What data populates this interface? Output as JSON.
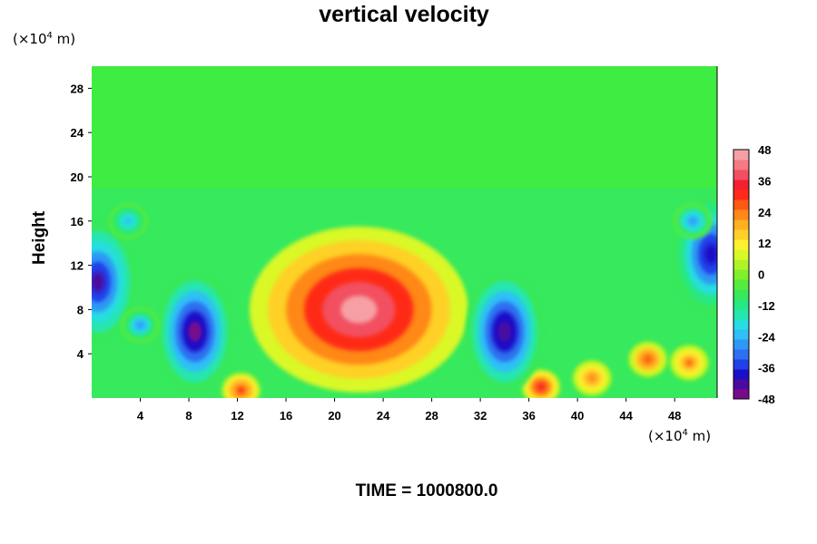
{
  "title": "vertical velocity",
  "footer": "TIME = 1000800.0",
  "chart_data": {
    "type": "heatmap",
    "title": "vertical velocity",
    "xlabel": "",
    "ylabel": "Height",
    "x_unit": "(×10⁴ m)",
    "y_unit": "(×10⁴ m)",
    "unit_base": "(×10",
    "unit_exp": "4",
    "unit_tail": " m)",
    "xlim": [
      0,
      51.5
    ],
    "ylim": [
      0,
      30
    ],
    "x_ticks": [
      4,
      8,
      12,
      16,
      20,
      24,
      28,
      32,
      36,
      40,
      44,
      48
    ],
    "y_ticks": [
      4,
      8,
      12,
      16,
      20,
      24,
      28
    ],
    "colorbar": {
      "min": -48,
      "max": 48,
      "step": 4,
      "ticks": [
        48,
        36,
        24,
        12,
        0,
        -12,
        -24,
        -36,
        -48
      ],
      "colors": [
        "#7a0a8c",
        "#4a0aa0",
        "#1a10c8",
        "#2040e8",
        "#2e6ef0",
        "#2f98f5",
        "#2ec0f6",
        "#27dee0",
        "#26e6b0",
        "#28e884",
        "#38e85a",
        "#56ec3c",
        "#80f02c",
        "#b0f428",
        "#daf828",
        "#fff030",
        "#ffd028",
        "#ffb020",
        "#ff8818",
        "#ff5a14",
        "#ff2a18",
        "#f42030",
        "#f25060",
        "#f47a84",
        "#f6a0a6"
      ]
    },
    "features": [
      {
        "kind": "updraft",
        "x": 22,
        "y": 8,
        "w_max": 48
      },
      {
        "kind": "updraft",
        "x": 12.3,
        "y": 0.7,
        "w_max": 30
      },
      {
        "kind": "updraft",
        "x": 41.2,
        "y": 1.8,
        "w_max": 22
      },
      {
        "kind": "updraft",
        "x": 45.8,
        "y": 3.5,
        "w_max": 28
      },
      {
        "kind": "updraft",
        "x": 49.2,
        "y": 3.2,
        "w_max": 26
      },
      {
        "kind": "updraft",
        "x": 37,
        "y": 1,
        "w_max": 34
      },
      {
        "kind": "downdraft",
        "x": 8.5,
        "y": 6,
        "w_max": -48
      },
      {
        "kind": "downdraft",
        "x": 34,
        "y": 6,
        "w_max": -46
      },
      {
        "kind": "downdraft",
        "x": 0.5,
        "y": 10.5,
        "w_max": -44
      },
      {
        "kind": "downdraft",
        "x": 51,
        "y": 13,
        "w_max": -42
      },
      {
        "kind": "downdraft",
        "x": 4,
        "y": 6.6,
        "w_max": -28
      },
      {
        "kind": "downdraft",
        "x": 3,
        "y": 16,
        "w_max": -24
      },
      {
        "kind": "downdraft",
        "x": 49.5,
        "y": 16,
        "w_max": -30
      }
    ]
  }
}
